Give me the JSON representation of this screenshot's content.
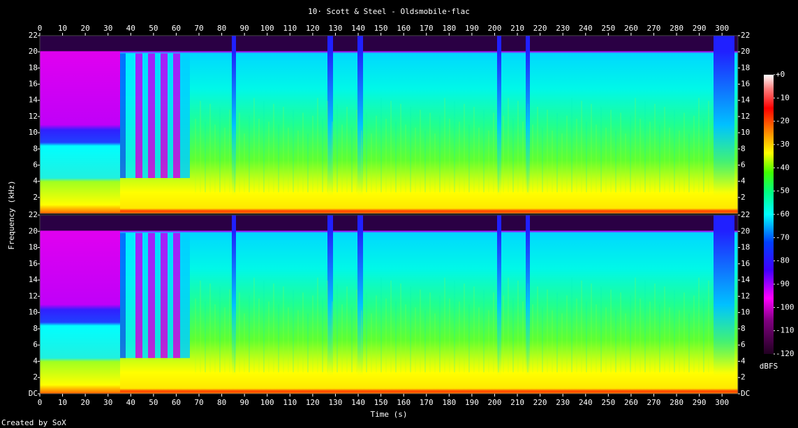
{
  "chart_data": {
    "type": "spectrogram",
    "title": "10· Scott & Steel - Oldsmobile·flac",
    "xlabel": "Time (s)",
    "ylabel": "Frequency (kHz)",
    "xlim": [
      0,
      307
    ],
    "xticks": [
      0,
      10,
      20,
      30,
      40,
      50,
      60,
      70,
      80,
      90,
      100,
      110,
      120,
      130,
      140,
      150,
      160,
      170,
      180,
      190,
      200,
      210,
      220,
      230,
      240,
      250,
      260,
      270,
      280,
      290,
      300
    ],
    "panels": [
      {
        "ylim": [
          0,
          22
        ],
        "yticks": [
          2,
          4,
          6,
          8,
          10,
          12,
          14,
          16,
          18,
          20,
          22
        ]
      },
      {
        "ylim": [
          0,
          22
        ],
        "yticks": [
          {
            "value": 0,
            "label": "DC"
          },
          2,
          4,
          6,
          8,
          10,
          12,
          14,
          16,
          18,
          20,
          22
        ]
      }
    ],
    "colorbar": {
      "label": "dBFS",
      "lim": [
        -120,
        0
      ],
      "ticks": [
        {
          "value": 0,
          "label": "+0"
        },
        -10,
        -20,
        -30,
        -40,
        -50,
        -60,
        -70,
        -80,
        -90,
        -100,
        -110,
        -120
      ]
    },
    "credit": "Created by SoX"
  }
}
